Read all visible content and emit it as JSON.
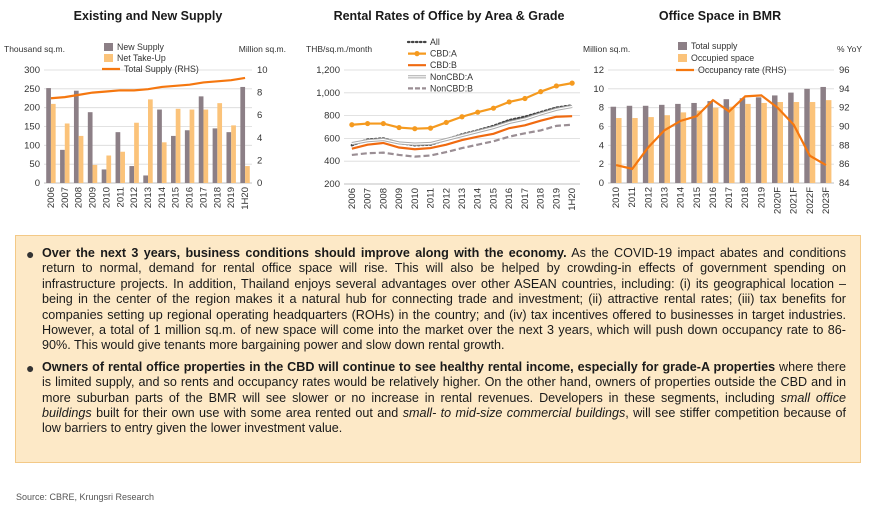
{
  "chart_data": [
    {
      "type": "bar",
      "title": "Existing and New Supply",
      "left_unit": "Thousand sq.m.",
      "right_unit": "Million sq.m.",
      "categories": [
        "2006",
        "2007",
        "2008",
        "2009",
        "2010",
        "2011",
        "2012",
        "2013",
        "2014",
        "2015",
        "2016",
        "2017",
        "2018",
        "2019",
        "1H20"
      ],
      "ylim": [
        0,
        300
      ],
      "y2lim": [
        0,
        10
      ],
      "yticks": [
        0,
        50,
        100,
        150,
        200,
        250,
        300
      ],
      "y2ticks": [
        0,
        2,
        4,
        6,
        8,
        10
      ],
      "series": [
        {
          "name": "New Supply",
          "kind": "bar",
          "color": "#8c7f86",
          "values": [
            252,
            88,
            245,
            188,
            36,
            135,
            45,
            20,
            195,
            125,
            140,
            230,
            145,
            135,
            255
          ]
        },
        {
          "name": "Net Take-Up",
          "kind": "bar",
          "color": "#fbc37a",
          "values": [
            210,
            158,
            125,
            48,
            73,
            83,
            160,
            222,
            108,
            197,
            195,
            195,
            212,
            153,
            45
          ]
        },
        {
          "name": "Total Supply (RHS)",
          "kind": "line",
          "axis": "right",
          "color": "#f5770f",
          "values": [
            7.5,
            7.6,
            7.8,
            8.0,
            8.1,
            8.2,
            8.2,
            8.3,
            8.5,
            8.6,
            8.7,
            8.9,
            9.0,
            9.1,
            9.3
          ]
        }
      ]
    },
    {
      "type": "line",
      "title": "Rental Rates of Office by Area & Grade",
      "left_unit": "THB/sq.m./month",
      "categories": [
        "2006",
        "2007",
        "2008",
        "2009",
        "2010",
        "2011",
        "2012",
        "2013",
        "2014",
        "2015",
        "2016",
        "2017",
        "2018",
        "2019",
        "1H20"
      ],
      "ylim": [
        200,
        1200
      ],
      "yticks": [
        200,
        400,
        600,
        800,
        1000,
        1200
      ],
      "yticklabels": [
        "200",
        "400",
        "600",
        "800",
        "1,000",
        "1,200"
      ],
      "series": [
        {
          "name": "All",
          "color": "#444444",
          "style": "dotted",
          "values": [
            540,
            590,
            600,
            560,
            540,
            545,
            590,
            635,
            670,
            710,
            760,
            790,
            830,
            870,
            890
          ]
        },
        {
          "name": "CBD:A",
          "color": "#f59a1f",
          "style": "solid-marker",
          "values": [
            720,
            730,
            730,
            695,
            685,
            690,
            740,
            790,
            830,
            865,
            920,
            950,
            1010,
            1060,
            1085
          ]
        },
        {
          "name": "CBD:B",
          "color": "#f06a10",
          "style": "solid",
          "values": [
            510,
            545,
            560,
            520,
            505,
            515,
            545,
            585,
            615,
            640,
            690,
            715,
            755,
            790,
            795
          ]
        },
        {
          "name": "NonCBD:A",
          "color": "#aaaaaa",
          "style": "double",
          "values": [
            555,
            580,
            590,
            560,
            550,
            555,
            590,
            625,
            660,
            695,
            740,
            770,
            815,
            855,
            880
          ]
        },
        {
          "name": "NonCBD:B",
          "color": "#9a8e94",
          "style": "dashed",
          "values": [
            455,
            470,
            475,
            455,
            440,
            450,
            480,
            515,
            545,
            575,
            615,
            645,
            670,
            710,
            720
          ]
        }
      ]
    },
    {
      "type": "bar",
      "title": "Office Space in BMR",
      "left_unit": "Million sq.m.",
      "right_unit": "% YoY",
      "categories": [
        "2010",
        "2011",
        "2012",
        "2013",
        "2014",
        "2015",
        "2016",
        "2017",
        "2018",
        "2019",
        "2020F",
        "2021F",
        "2022F",
        "2023F"
      ],
      "ylim": [
        0,
        12
      ],
      "y2lim": [
        84,
        96
      ],
      "yticks": [
        0,
        2,
        4,
        6,
        8,
        10,
        12
      ],
      "y2ticks": [
        84,
        86,
        88,
        90,
        92,
        94,
        96
      ],
      "series": [
        {
          "name": "Total supply",
          "kind": "bar",
          "color": "#8c7f86",
          "values": [
            8.1,
            8.2,
            8.2,
            8.3,
            8.4,
            8.5,
            8.7,
            8.9,
            9.0,
            9.1,
            9.3,
            9.6,
            10.0,
            10.2
          ]
        },
        {
          "name": "Occupied space",
          "kind": "bar",
          "color": "#fbc37a",
          "values": [
            6.9,
            6.9,
            7.0,
            7.2,
            7.5,
            7.7,
            8.0,
            8.1,
            8.4,
            8.5,
            8.6,
            8.6,
            8.6,
            8.8
          ]
        },
        {
          "name": "Occupancy rate (RHS)",
          "kind": "line",
          "axis": "right",
          "color": "#f5770f",
          "values": [
            85.9,
            85.5,
            87.8,
            89.6,
            90.6,
            91.1,
            92.8,
            91.6,
            93.2,
            93.3,
            92.0,
            90.2,
            86.9,
            85.9
          ]
        }
      ]
    }
  ],
  "notes": {
    "p1_bold": "Over the next 3 years, business conditions should improve along with the economy.",
    "p1_text": " As the COVID-19 impact abates and conditions return to normal, demand for rental office space will rise. This will also be helped by crowding-in effects of government spending on infrastructure projects. In addition, Thailand enjoys several advantages over other ASEAN countries, including: (i) its geographical location – being in the center of the region makes it a natural hub for connecting trade and investment; (ii) attractive rental rates; (iii) tax benefits for companies setting up regional operating headquarters (ROHs) in the country; and (iv) tax incentives offered to businesses in target industries. However, a total of 1 million sq.m. of new space will come into the market over the next 3 years, which will push down occupancy rate to 86-90%. This would give tenants more bargaining power and slow down rental growth.",
    "p2_bold": "Owners of rental office properties in the CBD will continue to see healthy rental income, especially for grade-A properties",
    "p2_text1": " where there is limited supply, and so rents and occupancy rates would be relatively higher. On the other hand, owners of properties outside the CBD and in more suburban parts of the BMR will see slower or no increase in rental revenues. Developers in these segments, including ",
    "p2_italic1": "small office buildings",
    "p2_text2": " built for their own use with some area rented out and ",
    "p2_italic2": "small- to mid-size commercial buildings",
    "p2_text3": ", will see stiffer competition because of low barriers to entry given the lower investment value."
  },
  "source": "Source: CBRE, Krungsri Research"
}
